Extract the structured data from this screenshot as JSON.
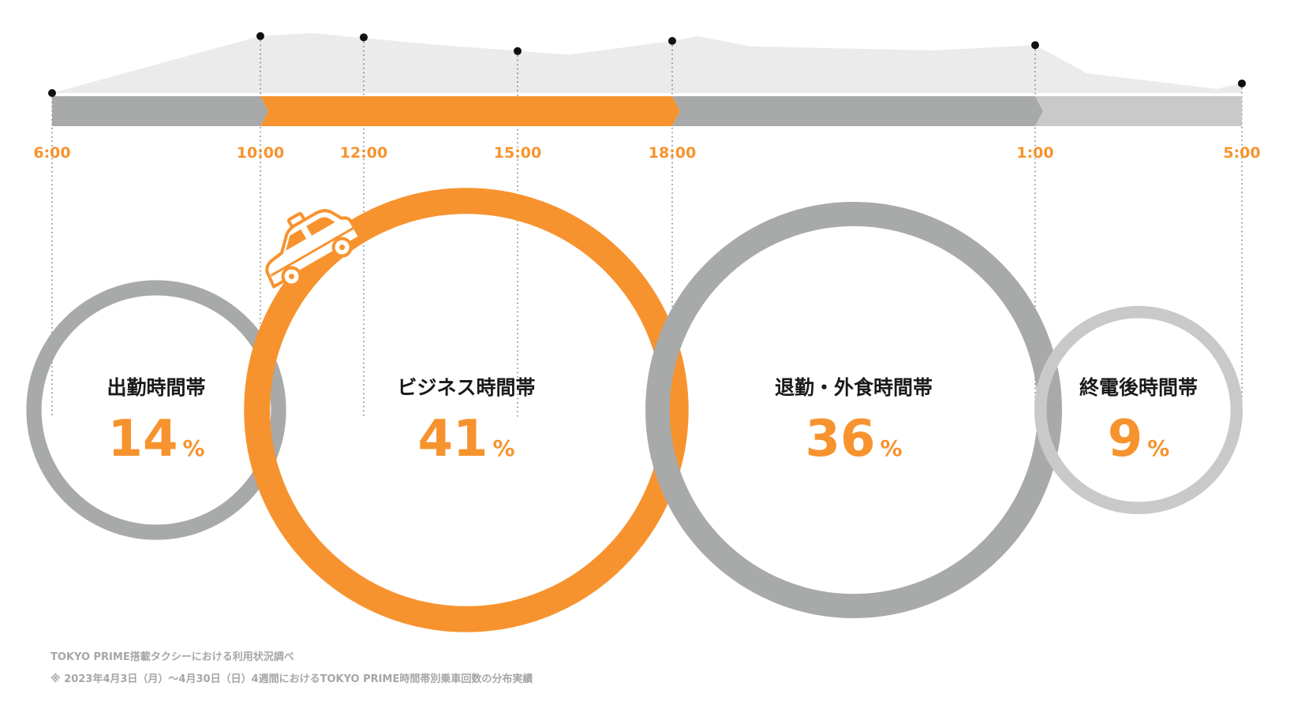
{
  "colors": {
    "orange": "#f7932e",
    "dark_gray": "#a8a9a9",
    "light_gray": "#c9c9c9",
    "area_fill": "#ebebeb",
    "dot": "#111111"
  },
  "icon": "taxi-icon",
  "chart_data": {
    "type": "timeline-bubble",
    "title": "",
    "xlabel": "",
    "ylabel": "",
    "ticks": [
      "6:00",
      "10:00",
      "12:00",
      "15:00",
      "18:00",
      "1:00",
      "5:00"
    ],
    "segments": [
      {
        "name": "出勤時間帯",
        "value": 14,
        "unit": "%",
        "start": "6:00",
        "end": "10:00",
        "color": "#a8a9a9"
      },
      {
        "name": "ビジネス時間帯",
        "value": 41,
        "unit": "%",
        "start": "10:00",
        "end": "18:00",
        "color": "#f7932e"
      },
      {
        "name": "退勤・外食時間帯",
        "value": 36,
        "unit": "%",
        "start": "18:00",
        "end": "1:00",
        "color": "#a8a9a9"
      },
      {
        "name": "終電後時間帯",
        "value": 9,
        "unit": "%",
        "start": "1:00",
        "end": "5:00",
        "color": "#c9c9c9"
      }
    ],
    "trend_markers": [
      {
        "time": "6:00",
        "level": 0.0
      },
      {
        "time": "10:00",
        "level": 0.95
      },
      {
        "time": "12:00",
        "level": 0.93
      },
      {
        "time": "15:00",
        "level": 0.7
      },
      {
        "time": "18:00",
        "level": 0.87
      },
      {
        "time": "1:00",
        "level": 0.8
      },
      {
        "time": "5:00",
        "level": 0.16
      }
    ],
    "trend_curve": [
      {
        "time": "6:00",
        "level": 0.0
      },
      {
        "time": "10:00",
        "level": 0.95
      },
      {
        "time": "11:00",
        "level": 1.0
      },
      {
        "time": "13:30",
        "level": 0.8
      },
      {
        "time": "16:00",
        "level": 0.64
      },
      {
        "time": "18:00",
        "level": 0.87
      },
      {
        "time": "18:30",
        "level": 0.95
      },
      {
        "time": "19:30",
        "level": 0.78
      },
      {
        "time": "23:00",
        "level": 0.71
      },
      {
        "time": "1:00",
        "level": 0.8
      },
      {
        "time": "2:00",
        "level": 0.33
      },
      {
        "time": "4:30",
        "level": 0.07
      },
      {
        "time": "5:00",
        "level": 0.16
      }
    ]
  },
  "notes": [
    "TOKYO PRIME搭載タクシーにおける利用状況調べ",
    "※ 2023年4月3日（月）～4月30日（日）4週間におけるTOKYO PRIME時間帯別乗車回数の分布実績"
  ]
}
